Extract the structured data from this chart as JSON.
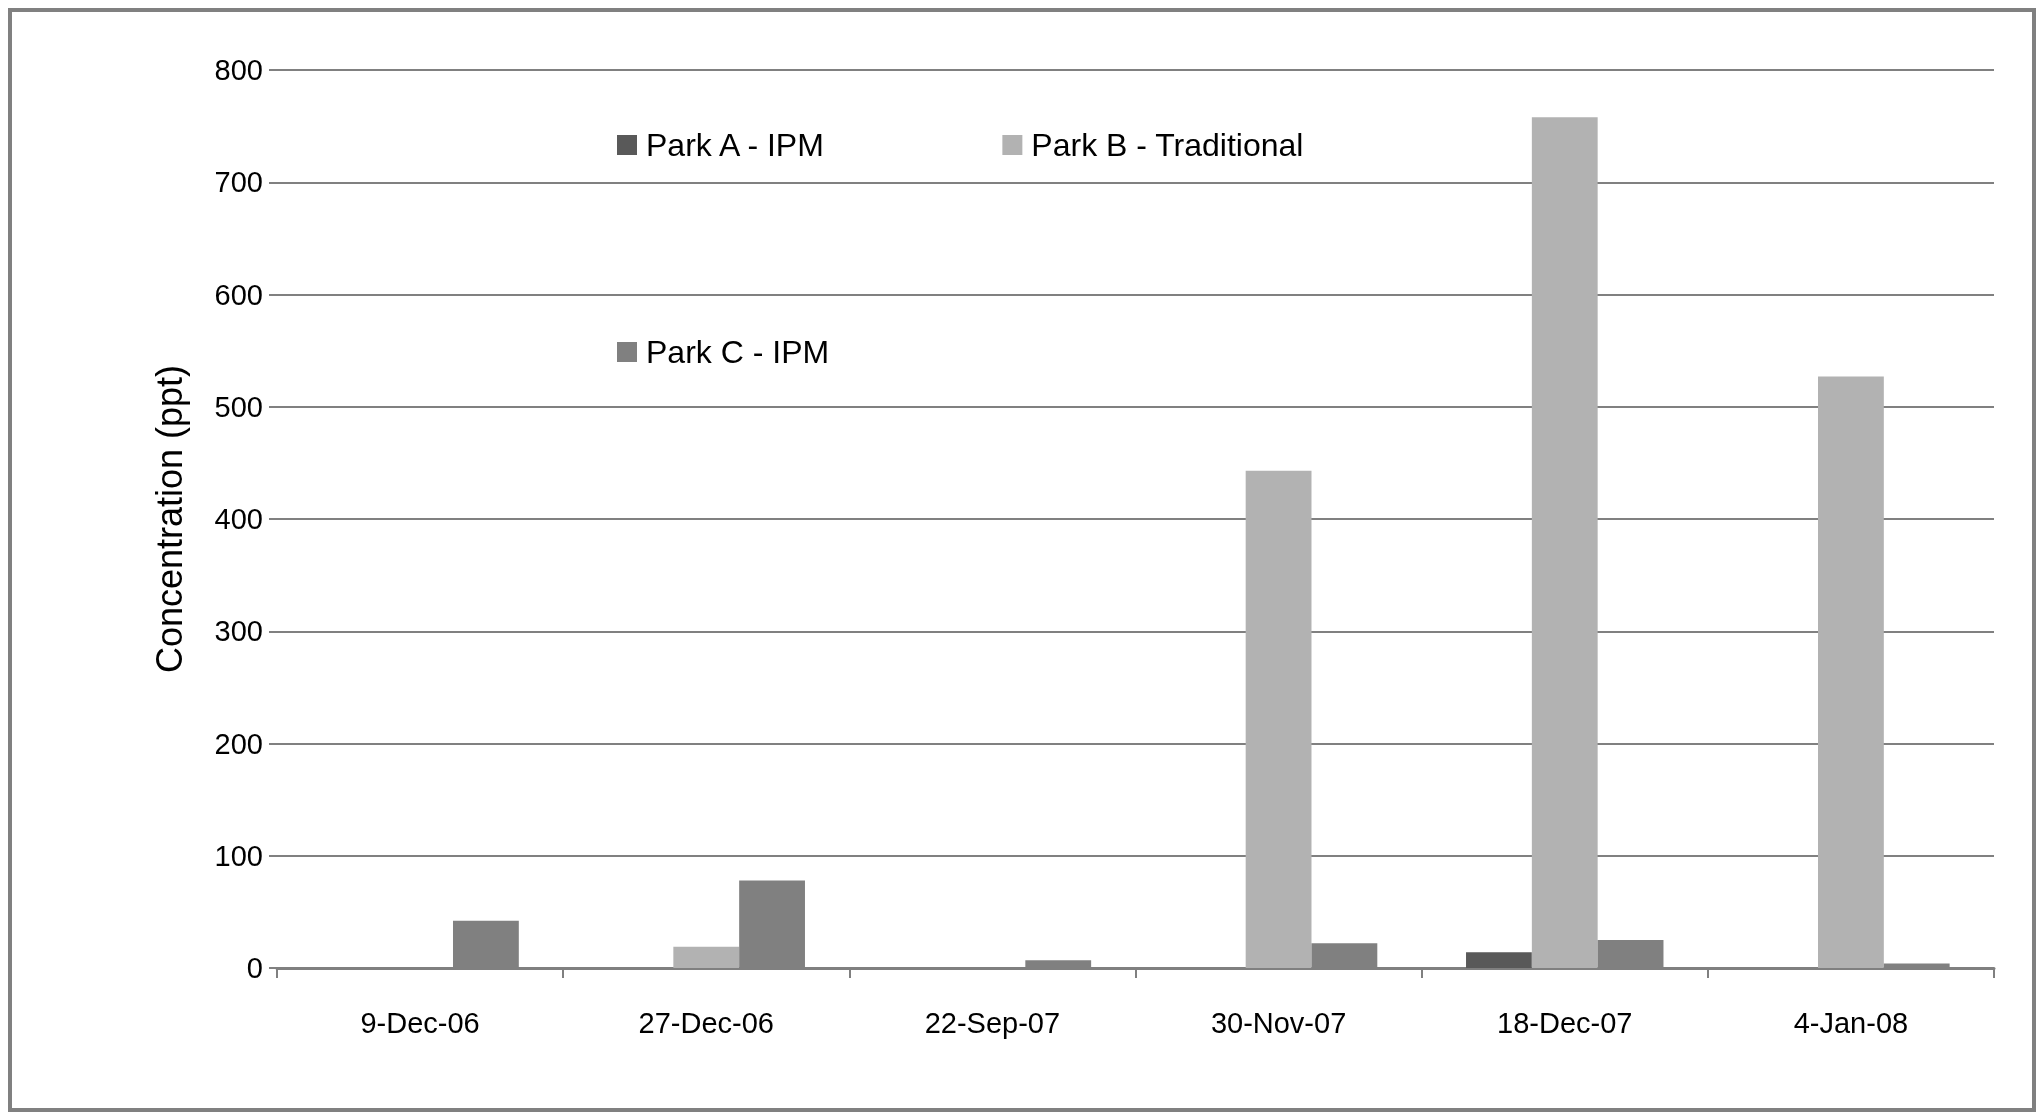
{
  "chart_data": {
    "type": "bar",
    "ylabel": "Concentration (ppt)",
    "categories": [
      "9-Dec-06",
      "27-Dec-06",
      "22-Sep-07",
      "30-Nov-07",
      "18-Dec-07",
      "4-Jan-08"
    ],
    "series": [
      {
        "name": "Park A - IPM",
        "color": "#595959",
        "values": [
          0,
          0,
          0,
          0,
          14,
          0
        ]
      },
      {
        "name": "Park B - Traditional",
        "color": "#b2b2b2",
        "values": [
          0,
          19,
          0,
          443,
          758,
          527
        ]
      },
      {
        "name": "Park C - IPM",
        "color": "#808080",
        "values": [
          42,
          78,
          7,
          22,
          25,
          4
        ]
      }
    ],
    "ylim": [
      0,
      800
    ],
    "yticks": [
      0,
      100,
      200,
      300,
      400,
      500,
      600,
      700,
      800
    ],
    "grid": "y",
    "legend": "top left"
  }
}
